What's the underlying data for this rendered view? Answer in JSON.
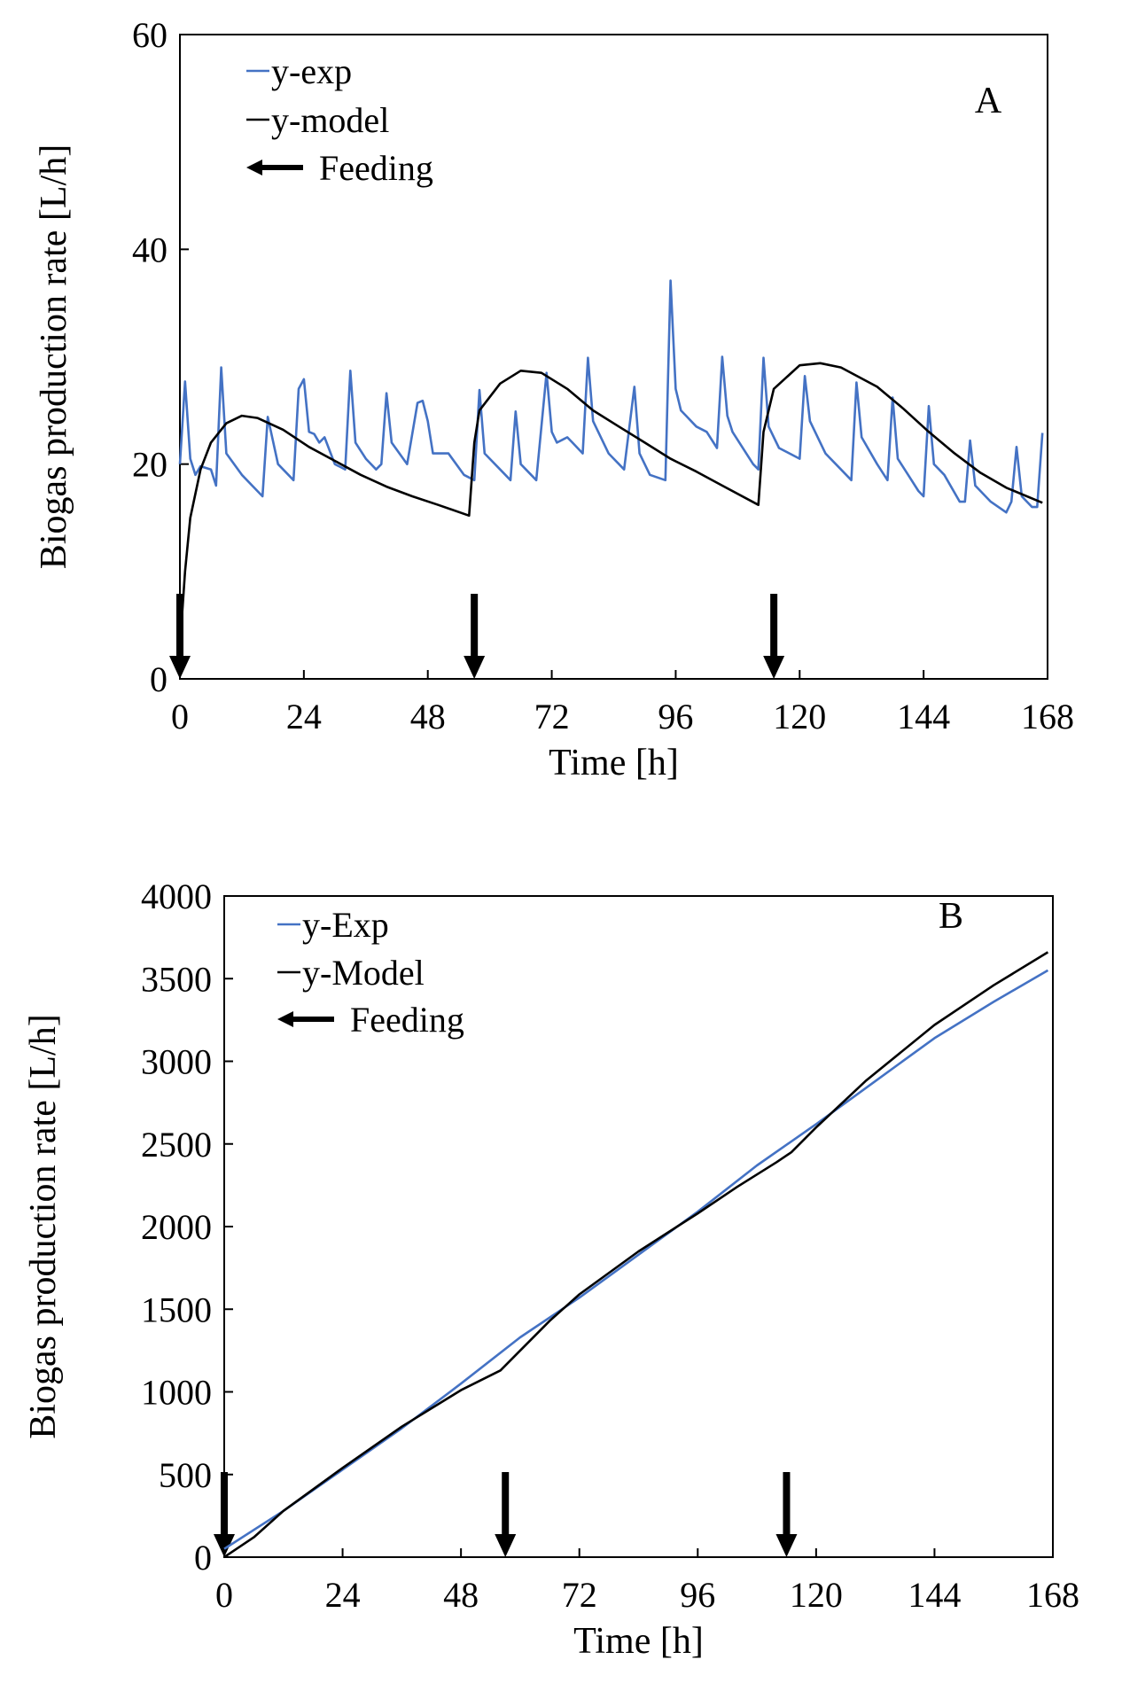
{
  "chart_data": [
    {
      "type": "line",
      "panel_label": "A",
      "xlabel": "Time [h]",
      "ylabel": "Biogas production rate [L/h]",
      "xlim": [
        0,
        168
      ],
      "xticks": [
        0,
        24,
        48,
        72,
        96,
        120,
        144,
        168
      ],
      "ylim": [
        0,
        60
      ],
      "yticks": [
        0,
        20,
        40,
        60
      ],
      "series": [
        {
          "name": "y-exp",
          "color": "#4472c4",
          "x": [
            0,
            1,
            2,
            3,
            4,
            6,
            7,
            8,
            9,
            12,
            15,
            16,
            17,
            19,
            22,
            23,
            24,
            25,
            26,
            27,
            28,
            30,
            32,
            33,
            34,
            36,
            38,
            39,
            40,
            41,
            44,
            46,
            47,
            48,
            49,
            52,
            55,
            57,
            58,
            59,
            62,
            64,
            65,
            66,
            69,
            71,
            72,
            73,
            75,
            76,
            77,
            78,
            79,
            80,
            83,
            86,
            88,
            89,
            91,
            94,
            95,
            96,
            97,
            98,
            100,
            102,
            104,
            105,
            106,
            107,
            111,
            112,
            113,
            114,
            116,
            120,
            121,
            122,
            125,
            128,
            130,
            131,
            132,
            135,
            137,
            138,
            139,
            141,
            143,
            144,
            145,
            146,
            148,
            151,
            152,
            153,
            154,
            157,
            160,
            161,
            162,
            163,
            165,
            166,
            167
          ],
          "values": [
            20,
            27.7,
            20.5,
            19,
            19.8,
            19.5,
            18,
            29,
            21,
            19,
            17.5,
            17,
            24.4,
            20,
            18.5,
            27,
            27.9,
            23,
            22.8,
            22,
            22.5,
            20,
            19.5,
            28.7,
            22,
            20.5,
            19.5,
            20,
            26.6,
            22,
            20,
            25.7,
            25.9,
            24,
            21,
            21,
            19,
            18.5,
            26.9,
            21,
            19.5,
            18.5,
            24.9,
            20,
            18.5,
            28.5,
            23,
            22,
            22.5,
            22,
            21.5,
            21,
            29.9,
            24,
            21,
            19.5,
            27.2,
            21,
            19,
            18.5,
            37.1,
            27,
            25,
            24.5,
            23.5,
            23,
            21.5,
            30,
            24.5,
            23,
            20,
            19.5,
            29.9,
            23.5,
            21.5,
            20.5,
            28.2,
            24,
            21,
            19.5,
            18.5,
            27.6,
            22.5,
            20,
            18.5,
            26.2,
            20.5,
            19,
            17.5,
            17,
            25.4,
            20,
            19,
            16.5,
            16.5,
            22.2,
            18,
            16.5,
            15.5,
            16.5,
            21.6,
            17,
            16,
            16,
            22.9
          ]
        },
        {
          "name": "y-model",
          "color": "#000000",
          "x": [
            0,
            1,
            2,
            4,
            6,
            9,
            12,
            15,
            20,
            25,
            30,
            35,
            40,
            45,
            50,
            56,
            57,
            58,
            62,
            66,
            70,
            75,
            80,
            85,
            90,
            95,
            100,
            105,
            112,
            113,
            115,
            120,
            124,
            128,
            135,
            140,
            145,
            150,
            155,
            160,
            167
          ],
          "values": [
            3,
            10,
            15,
            19.5,
            22,
            23.8,
            24.5,
            24.3,
            23.2,
            21.6,
            20.3,
            19,
            17.9,
            17,
            16.2,
            15.2,
            22,
            25,
            27.5,
            28.7,
            28.5,
            27,
            25,
            23.5,
            22,
            20.5,
            19.3,
            18,
            16.2,
            23,
            27,
            29.2,
            29.4,
            29,
            27.2,
            25.2,
            23,
            21,
            19.2,
            17.8,
            16.4
          ]
        }
      ],
      "feeding_label": "Feeding",
      "feeding_x": [
        0,
        57,
        115
      ]
    },
    {
      "type": "line",
      "panel_label": "B",
      "xlabel": "Time [h]",
      "ylabel": "Biogas production rate [L/h]",
      "xlim": [
        0,
        168
      ],
      "xticks": [
        0,
        24,
        48,
        72,
        96,
        120,
        144,
        168
      ],
      "ylim": [
        0,
        4000
      ],
      "yticks": [
        0,
        500,
        1000,
        1500,
        2000,
        2500,
        3000,
        3500,
        4000
      ],
      "series": [
        {
          "name": "y-Exp",
          "color": "#4472c4",
          "x": [
            0,
            12,
            24,
            36,
            48,
            60,
            72,
            84,
            96,
            108,
            120,
            132,
            144,
            156,
            167
          ],
          "values": [
            50,
            280,
            530,
            780,
            1050,
            1330,
            1570,
            1830,
            2090,
            2370,
            2620,
            2880,
            3140,
            3360,
            3550
          ]
        },
        {
          "name": "y-Model",
          "color": "#000000",
          "x": [
            0,
            6,
            12,
            24,
            36,
            48,
            56,
            60,
            66,
            72,
            84,
            96,
            104,
            112,
            115,
            120,
            130,
            144,
            156,
            167
          ],
          "values": [
            0,
            120,
            280,
            540,
            790,
            1010,
            1130,
            1250,
            1430,
            1590,
            1850,
            2080,
            2240,
            2390,
            2450,
            2600,
            2880,
            3220,
            3460,
            3660
          ]
        }
      ],
      "feeding_label": "Feeding",
      "feeding_x": [
        0,
        57,
        114
      ]
    }
  ]
}
